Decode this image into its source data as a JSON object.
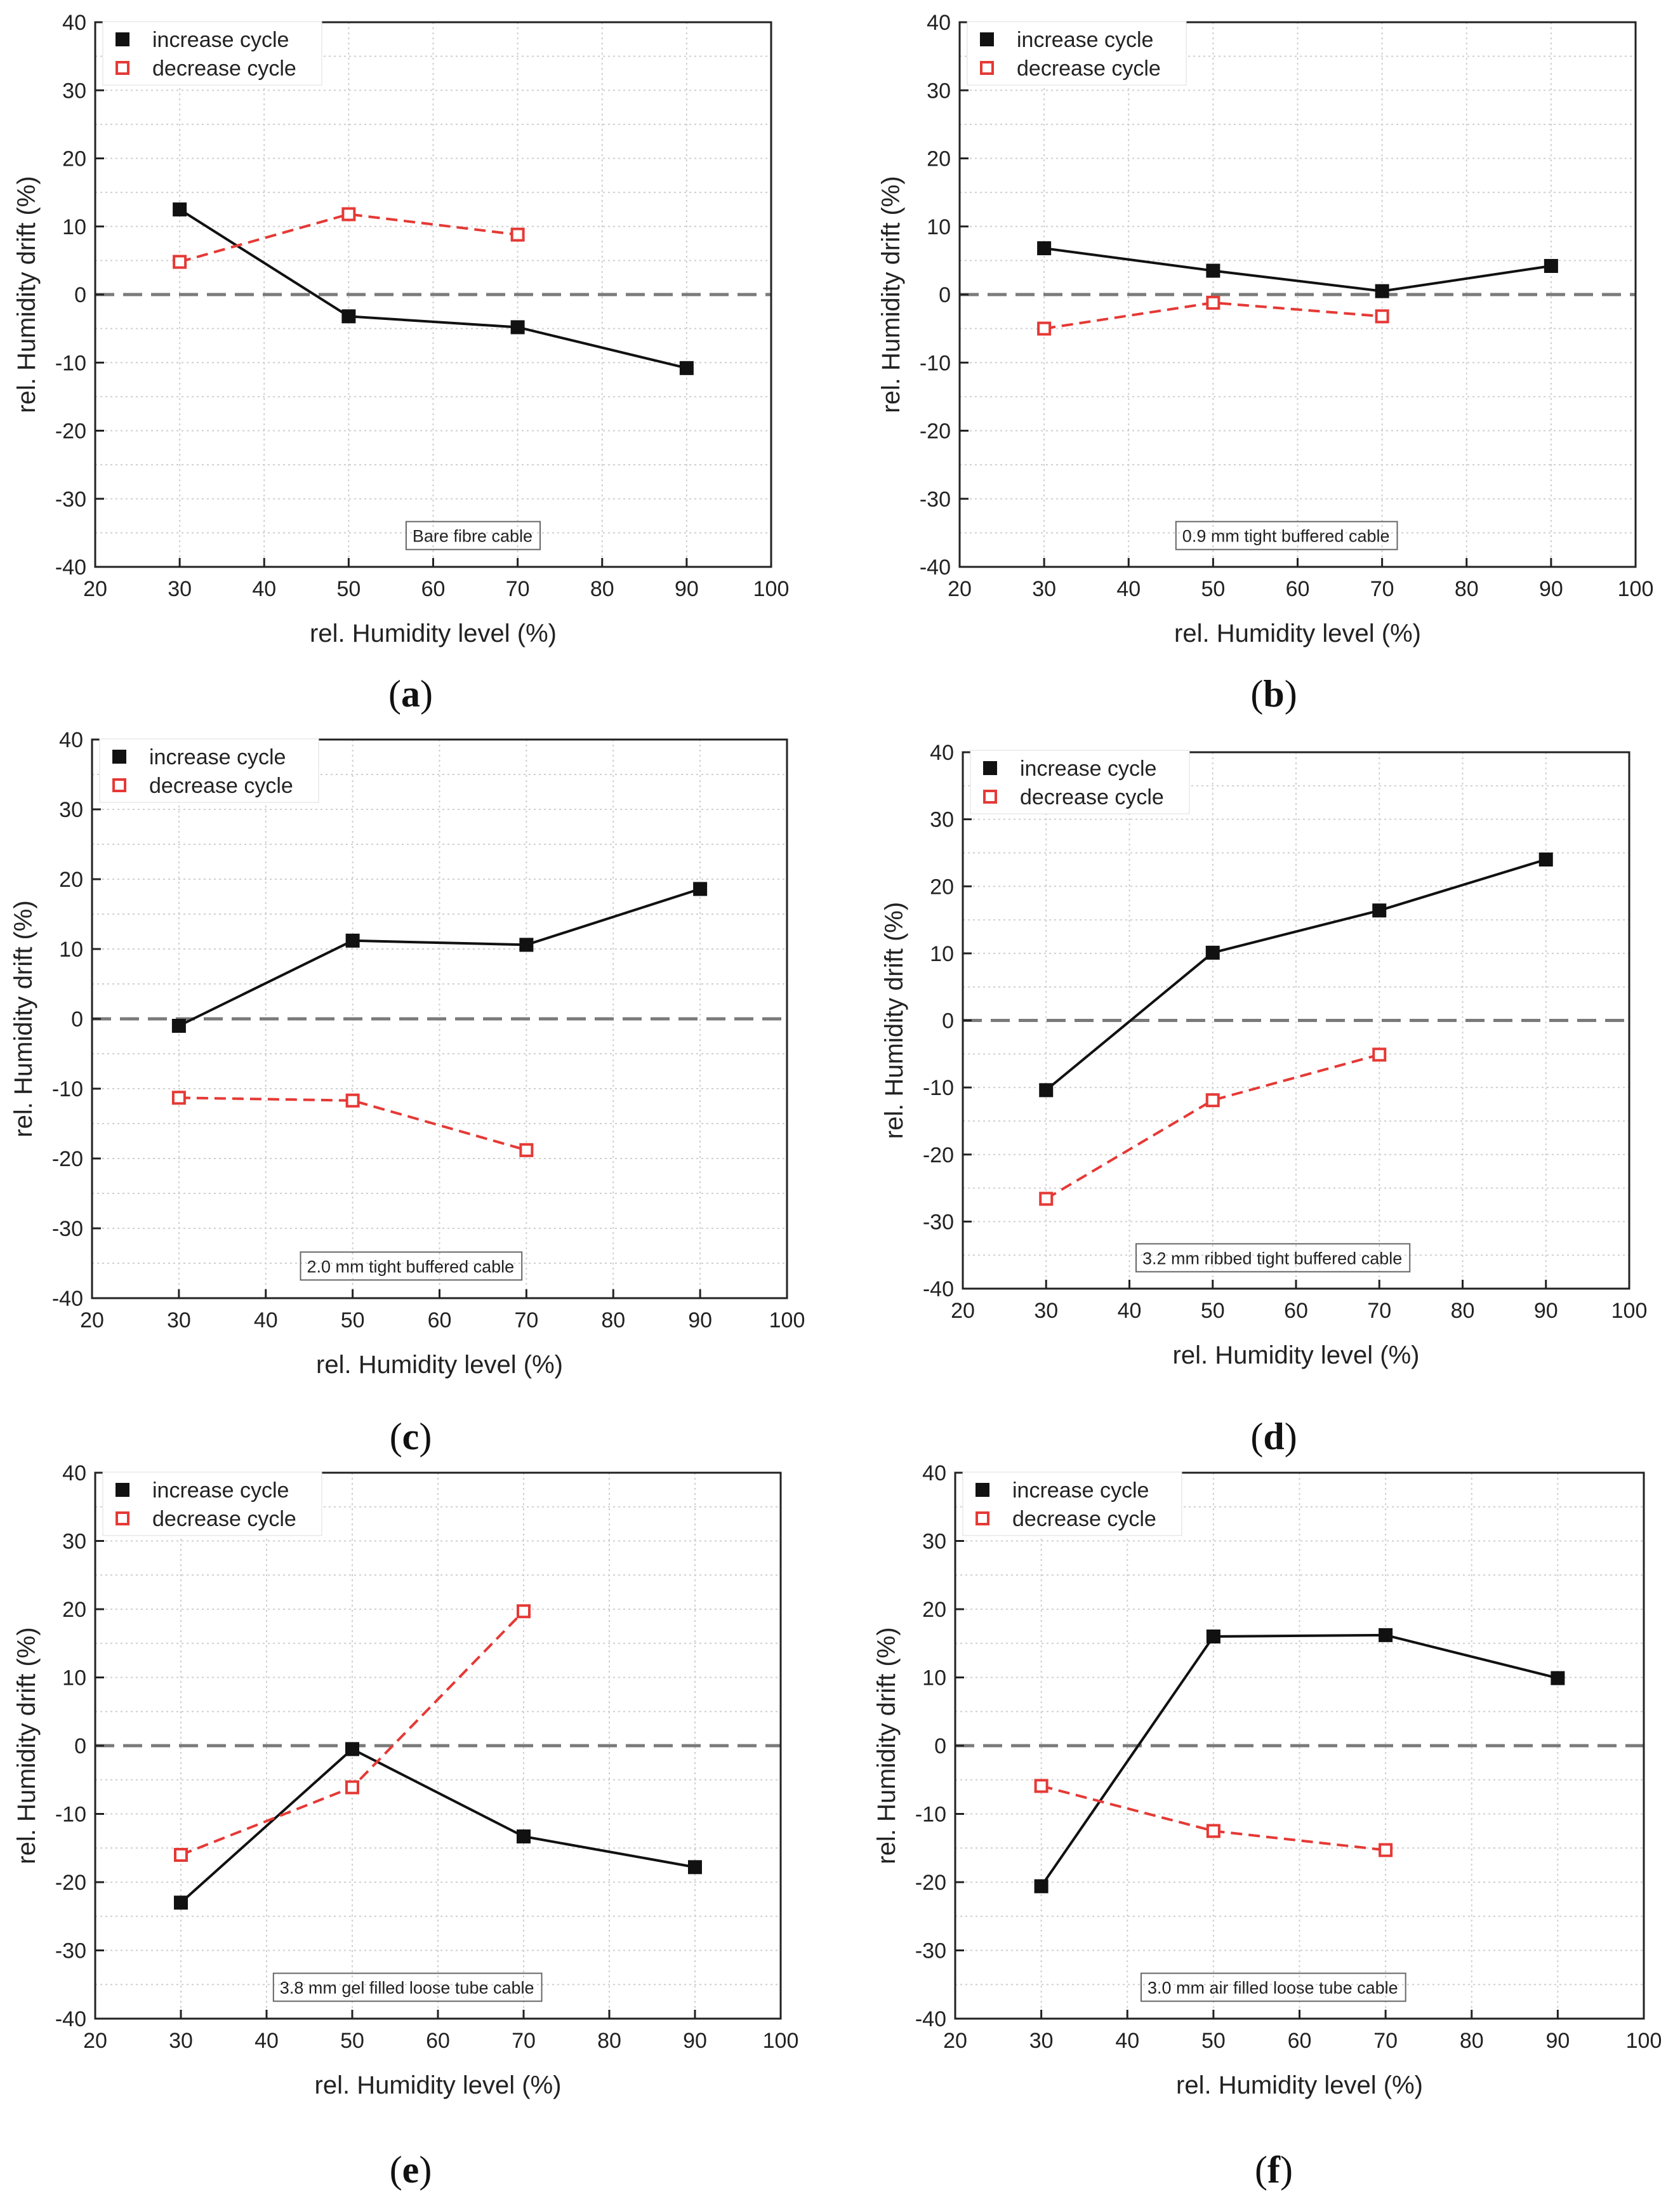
{
  "colors": {
    "increase": "#111111",
    "decrease": "#e53935",
    "zero_line": "#7a7a7a",
    "grid": "#cfcfcf"
  },
  "legend": {
    "increase_label": "increase cycle",
    "decrease_label": "decrease cycle"
  },
  "chart_data": [
    {
      "type": "line",
      "panel": "a",
      "annotation": "Bare fibre cable",
      "xlabel": "rel. Humidity level (%)",
      "ylabel": "rel. Humidity drift (%)",
      "xlim": [
        20,
        100
      ],
      "ylim": [
        -40,
        40
      ],
      "xticks": [
        20,
        30,
        40,
        50,
        60,
        70,
        80,
        90,
        100
      ],
      "yticks": [
        -40,
        -30,
        -20,
        -10,
        0,
        10,
        20,
        30,
        40
      ],
      "series": [
        {
          "name": "increase cycle",
          "x": [
            30,
            50,
            70,
            90
          ],
          "values": [
            12.5,
            -3.2,
            -4.8,
            -10.8
          ]
        },
        {
          "name": "decrease cycle",
          "x": [
            30,
            50,
            70
          ],
          "values": [
            4.8,
            11.8,
            8.8
          ]
        }
      ]
    },
    {
      "type": "line",
      "panel": "b",
      "annotation": "0.9 mm tight buffered cable",
      "xlabel": "rel. Humidity level (%)",
      "ylabel": "rel. Humidity drift (%)",
      "xlim": [
        20,
        100
      ],
      "ylim": [
        -40,
        40
      ],
      "xticks": [
        20,
        30,
        40,
        50,
        60,
        70,
        80,
        90,
        100
      ],
      "yticks": [
        -40,
        -30,
        -20,
        -10,
        0,
        10,
        20,
        30,
        40
      ],
      "series": [
        {
          "name": "increase cycle",
          "x": [
            30,
            50,
            70,
            90
          ],
          "values": [
            6.8,
            3.5,
            0.5,
            4.2
          ]
        },
        {
          "name": "decrease cycle",
          "x": [
            30,
            50,
            70
          ],
          "values": [
            -5.0,
            -1.2,
            -3.2
          ]
        }
      ]
    },
    {
      "type": "line",
      "panel": "c",
      "annotation": "2.0 mm tight buffered cable",
      "xlabel": "rel. Humidity level (%)",
      "ylabel": "rel. Humidity drift (%)",
      "xlim": [
        20,
        100
      ],
      "ylim": [
        -40,
        40
      ],
      "xticks": [
        20,
        30,
        40,
        50,
        60,
        70,
        80,
        90,
        100
      ],
      "yticks": [
        -40,
        -30,
        -20,
        -10,
        0,
        10,
        20,
        30,
        40
      ],
      "series": [
        {
          "name": "increase cycle",
          "x": [
            30,
            50,
            70,
            90
          ],
          "values": [
            -1.0,
            11.2,
            10.6,
            18.6
          ]
        },
        {
          "name": "decrease cycle",
          "x": [
            30,
            50,
            70
          ],
          "values": [
            -11.3,
            -11.7,
            -18.8
          ]
        }
      ]
    },
    {
      "type": "line",
      "panel": "d",
      "annotation": "3.2 mm ribbed tight buffered cable",
      "xlabel": "rel. Humidity level (%)",
      "ylabel": "rel. Humidity drift (%)",
      "xlim": [
        20,
        100
      ],
      "ylim": [
        -40,
        40
      ],
      "xticks": [
        20,
        30,
        40,
        50,
        60,
        70,
        80,
        90,
        100
      ],
      "yticks": [
        -40,
        -30,
        -20,
        -10,
        0,
        10,
        20,
        30,
        40
      ],
      "series": [
        {
          "name": "increase cycle",
          "x": [
            30,
            50,
            70,
            90
          ],
          "values": [
            -10.4,
            10.1,
            16.4,
            24.0
          ]
        },
        {
          "name": "decrease cycle",
          "x": [
            30,
            50,
            70
          ],
          "values": [
            -26.6,
            -11.9,
            -5.1
          ]
        }
      ]
    },
    {
      "type": "line",
      "panel": "e",
      "annotation": "3.8 mm gel filled loose tube cable",
      "xlabel": "rel. Humidity level (%)",
      "ylabel": "rel. Humidity drift (%)",
      "xlim": [
        20,
        100
      ],
      "ylim": [
        -40,
        40
      ],
      "xticks": [
        20,
        30,
        40,
        50,
        60,
        70,
        80,
        90,
        100
      ],
      "yticks": [
        -40,
        -30,
        -20,
        -10,
        0,
        10,
        20,
        30,
        40
      ],
      "series": [
        {
          "name": "increase cycle",
          "x": [
            30,
            50,
            70,
            90
          ],
          "values": [
            -23.0,
            -0.5,
            -13.3,
            -17.8
          ]
        },
        {
          "name": "decrease cycle",
          "x": [
            30,
            50,
            70
          ],
          "values": [
            -16.0,
            -6.1,
            19.7
          ]
        }
      ]
    },
    {
      "type": "line",
      "panel": "f",
      "annotation": "3.0 mm air filled loose tube cable",
      "xlabel": "rel. Humidity level (%)",
      "ylabel": "rel. Humidity drift (%)",
      "xlim": [
        20,
        100
      ],
      "ylim": [
        -40,
        40
      ],
      "xticks": [
        20,
        30,
        40,
        50,
        60,
        70,
        80,
        90,
        100
      ],
      "yticks": [
        -40,
        -30,
        -20,
        -10,
        0,
        10,
        20,
        30,
        40
      ],
      "series": [
        {
          "name": "increase cycle",
          "x": [
            30,
            50,
            70,
            90
          ],
          "values": [
            -20.6,
            16.0,
            16.2,
            9.9
          ]
        },
        {
          "name": "decrease cycle",
          "x": [
            30,
            50,
            70
          ],
          "values": [
            -5.9,
            -12.5,
            -15.3
          ]
        }
      ]
    }
  ]
}
